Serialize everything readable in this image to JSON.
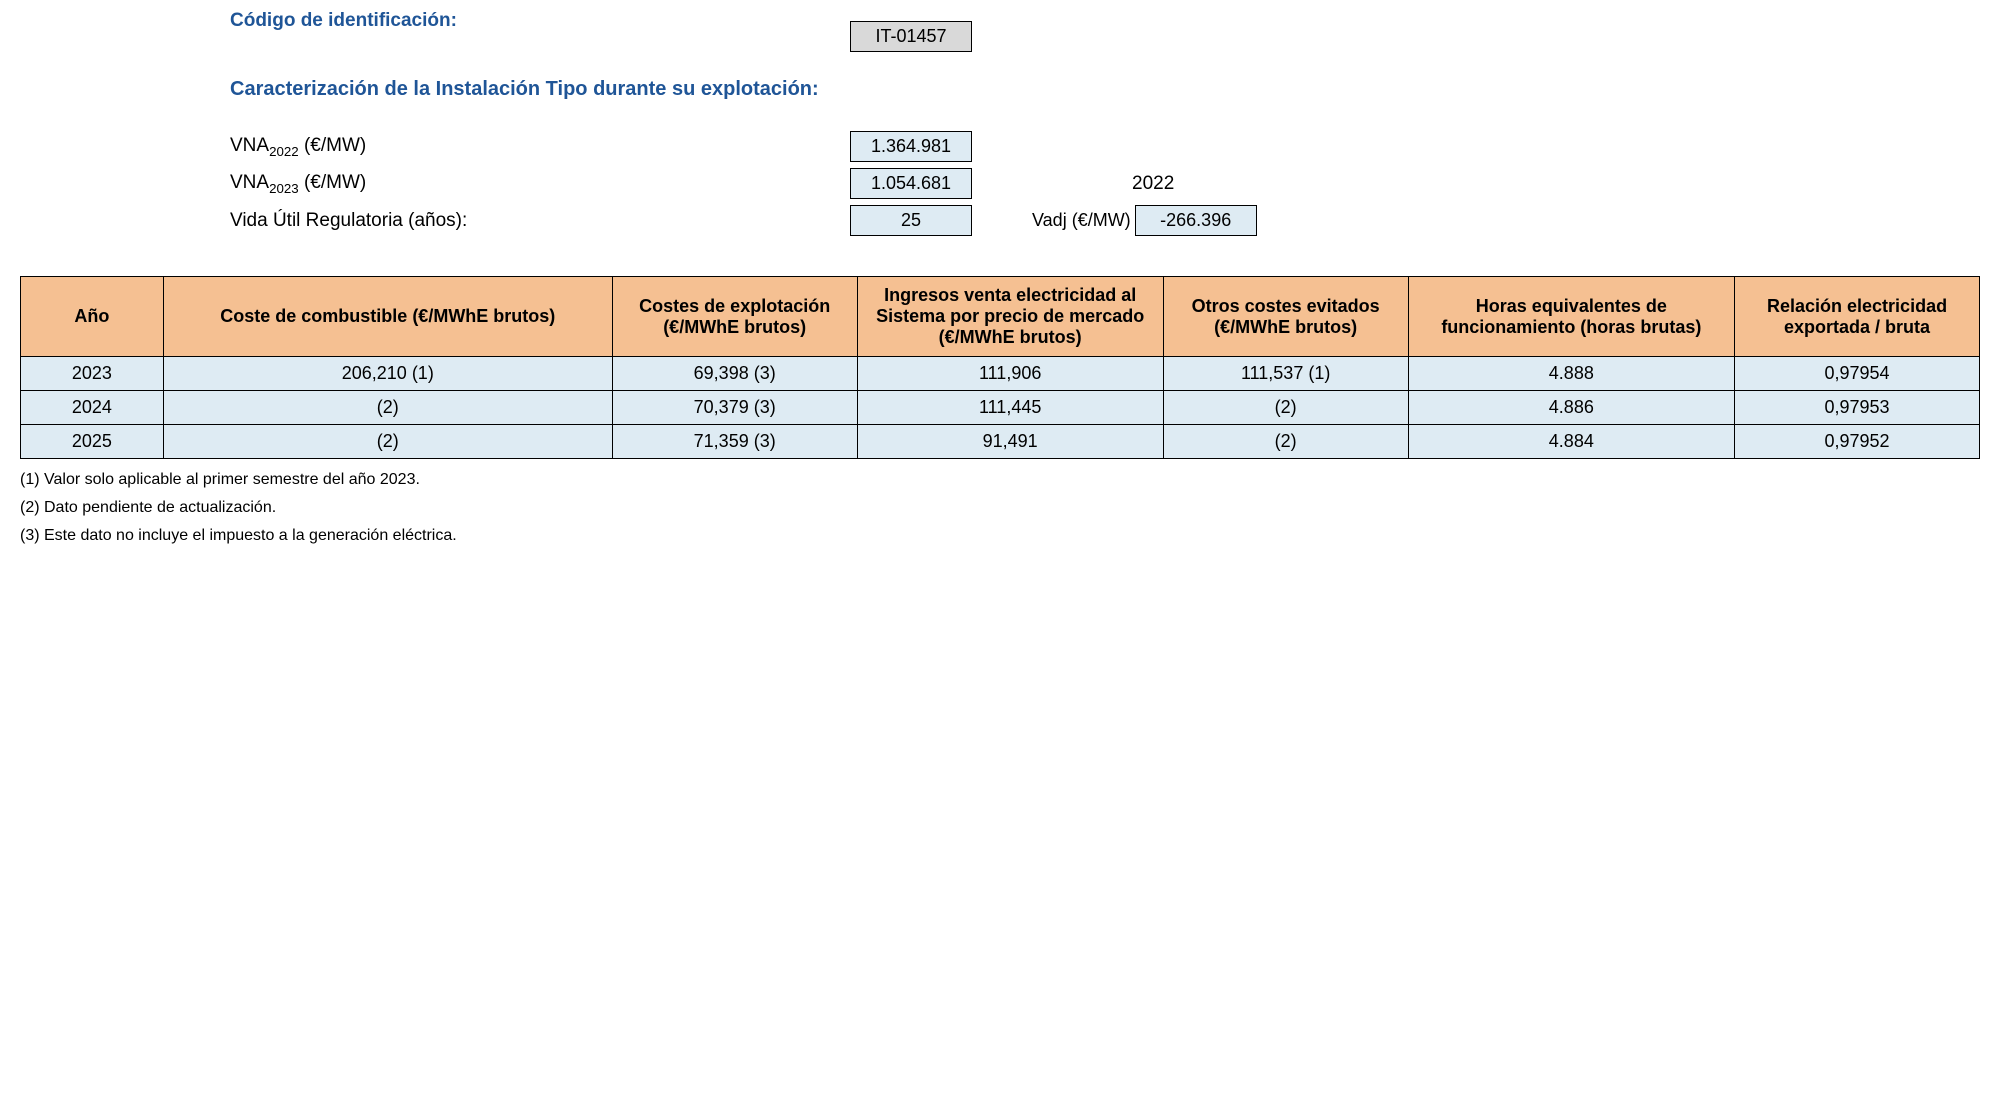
{
  "header": {
    "code_label": "Código de identificación:",
    "code_value": "IT-01457",
    "section_title": "Caracterización de la Instalación Tipo durante su explotación:",
    "vna2022_label_html": "VNA<sub>2022</sub> (€/MW)",
    "vna2022_value": "1.364.981",
    "vna2023_label_html": "VNA<sub>2023</sub> (€/MW)",
    "vna2023_value": "1.054.681",
    "year_plain": "2022",
    "life_label": "Vida Útil Regulatoria (años):",
    "life_value": "25",
    "vadj_label": "Vadj (€/MW)",
    "vadj_value": "-266.396"
  },
  "table": {
    "columns": {
      "year": "Año",
      "fuel": "Coste de combustible (€/MWhE brutos)",
      "exp": "Costes de explotación (€/MWhE brutos)",
      "sale": "Ingresos venta electricidad al Sistema por precio de mercado (€/MWhE brutos)",
      "other": "Otros costes evitados (€/MWhE brutos)",
      "hours": "Horas equivalentes de funcionamiento (horas brutas)",
      "rel": "Relación electricidad exportada / bruta"
    },
    "rows": [
      {
        "year": "2023",
        "fuel": "206,210 (1)",
        "exp": "69,398 (3)",
        "sale": "111,906",
        "other": "111,537 (1)",
        "hours": "4.888",
        "rel": "0,97954"
      },
      {
        "year": "2024",
        "fuel": "(2)",
        "exp": "70,379 (3)",
        "sale": "111,445",
        "other": "(2)",
        "hours": "4.886",
        "rel": "0,97953"
      },
      {
        "year": "2025",
        "fuel": "(2)",
        "exp": "71,359 (3)",
        "sale": "91,491",
        "other": "(2)",
        "hours": "4.884",
        "rel": "0,97952"
      }
    ]
  },
  "footnotes": {
    "n1": "(1) Valor solo aplicable al primer semestre del año 2023.",
    "n2": "(2) Dato pendiente de actualización.",
    "n3": "(3) Este dato no incluye el impuesto a la generación eléctrica."
  },
  "colors": {
    "heading": "#1f5597",
    "header_bg": "#f5c092",
    "cell_bg": "#deebf3",
    "code_bg": "#d9d9d9",
    "border": "#000000"
  }
}
